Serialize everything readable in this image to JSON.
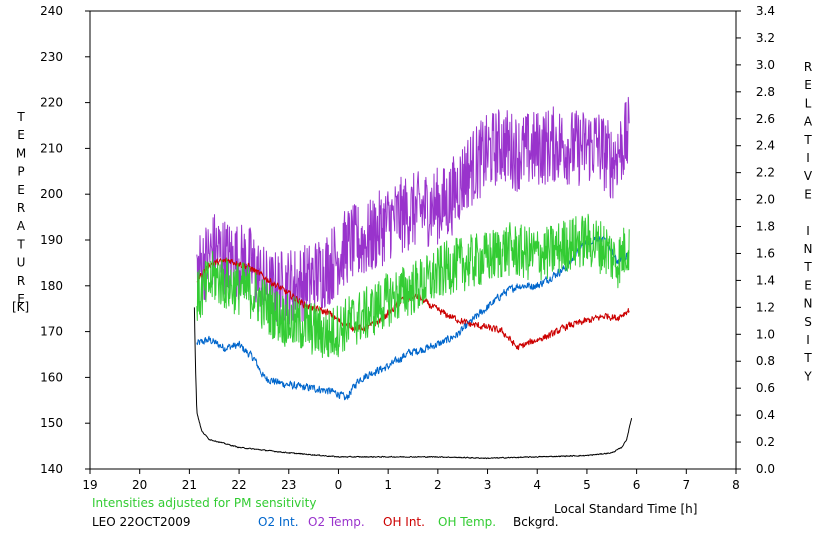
{
  "chart_data": {
    "type": "line",
    "x_axis": {
      "label": "Local Standard Time [h]",
      "range": [
        19,
        32
      ],
      "ticks": [
        19,
        20,
        21,
        22,
        23,
        24,
        25,
        26,
        27,
        28,
        29,
        30,
        31,
        32
      ],
      "tick_labels": [
        "19",
        "20",
        "21",
        "22",
        "23",
        "0",
        "1",
        "2",
        "3",
        "4",
        "5",
        "6",
        "7",
        "8"
      ]
    },
    "y_left": {
      "label": "TEMPERATURE",
      "unit": "[K]",
      "range": [
        140,
        240
      ],
      "ticks": [
        140,
        150,
        160,
        170,
        180,
        190,
        200,
        210,
        220,
        230,
        240
      ],
      "tick_labels": [
        "140",
        "150",
        "160",
        "170",
        "180",
        "190",
        "200",
        "210",
        "220",
        "230",
        "240"
      ]
    },
    "y_right": {
      "label": "RELATIVE INTENSITY",
      "range": [
        0.0,
        3.4
      ],
      "ticks": [
        0.0,
        0.2,
        0.4,
        0.6,
        0.8,
        1.0,
        1.2,
        1.4,
        1.6,
        1.8,
        2.0,
        2.2,
        2.4,
        2.6,
        2.8,
        3.0,
        3.2,
        3.4
      ],
      "tick_labels": [
        "0.0",
        "0.2",
        "0.4",
        "0.6",
        "0.8",
        "1.0",
        "1.2",
        "1.4",
        "1.6",
        "1.8",
        "2.0",
        "2.2",
        "2.4",
        "2.6",
        "2.8",
        "3.0",
        "3.2",
        "3.4"
      ]
    },
    "grid": false,
    "annotation": "Intensities adjusted for PM sensitivity",
    "station_date": "LEO 22OCT2009",
    "series": [
      {
        "name": "O2 Int.",
        "axis": "right",
        "color": "#0066cc",
        "noise": 0.04,
        "points": [
          [
            21.15,
            0.93
          ],
          [
            21.4,
            0.96
          ],
          [
            21.7,
            0.9
          ],
          [
            22.0,
            0.92
          ],
          [
            22.3,
            0.82
          ],
          [
            22.5,
            0.68
          ],
          [
            22.8,
            0.64
          ],
          [
            23.2,
            0.61
          ],
          [
            23.5,
            0.6
          ],
          [
            23.8,
            0.58
          ],
          [
            24.0,
            0.56
          ],
          [
            24.15,
            0.52
          ],
          [
            24.4,
            0.66
          ],
          [
            24.7,
            0.72
          ],
          [
            25.0,
            0.76
          ],
          [
            25.4,
            0.86
          ],
          [
            25.8,
            0.9
          ],
          [
            26.1,
            0.94
          ],
          [
            26.4,
            1.0
          ],
          [
            26.8,
            1.14
          ],
          [
            27.0,
            1.2
          ],
          [
            27.3,
            1.3
          ],
          [
            27.6,
            1.36
          ],
          [
            28.0,
            1.36
          ],
          [
            28.3,
            1.43
          ],
          [
            28.6,
            1.5
          ],
          [
            28.9,
            1.66
          ],
          [
            29.2,
            1.72
          ],
          [
            29.4,
            1.68
          ],
          [
            29.6,
            1.54
          ],
          [
            29.85,
            1.6
          ]
        ]
      },
      {
        "name": "O2 Temp.",
        "axis": "left",
        "color": "#9933cc",
        "noise": 8.5,
        "points": [
          [
            21.15,
            183
          ],
          [
            21.5,
            188
          ],
          [
            21.8,
            186
          ],
          [
            22.2,
            185
          ],
          [
            22.6,
            179
          ],
          [
            23.0,
            180
          ],
          [
            23.4,
            181
          ],
          [
            23.8,
            184
          ],
          [
            24.2,
            189
          ],
          [
            24.6,
            190
          ],
          [
            25.0,
            194
          ],
          [
            25.4,
            196
          ],
          [
            25.8,
            197
          ],
          [
            26.2,
            198
          ],
          [
            26.6,
            205
          ],
          [
            27.0,
            209
          ],
          [
            27.3,
            211
          ],
          [
            27.6,
            209
          ],
          [
            28.0,
            210
          ],
          [
            28.4,
            211
          ],
          [
            28.8,
            210
          ],
          [
            29.2,
            211
          ],
          [
            29.5,
            207
          ],
          [
            29.85,
            213
          ]
        ]
      },
      {
        "name": "OH Int.",
        "axis": "right",
        "color": "#cc0000",
        "noise": 0.035,
        "points": [
          [
            21.15,
            1.4
          ],
          [
            21.4,
            1.52
          ],
          [
            21.8,
            1.55
          ],
          [
            22.2,
            1.5
          ],
          [
            22.6,
            1.4
          ],
          [
            23.0,
            1.3
          ],
          [
            23.4,
            1.2
          ],
          [
            23.8,
            1.16
          ],
          [
            24.0,
            1.1
          ],
          [
            24.3,
            1.05
          ],
          [
            24.6,
            1.05
          ],
          [
            24.9,
            1.12
          ],
          [
            25.3,
            1.26
          ],
          [
            25.6,
            1.28
          ],
          [
            25.9,
            1.2
          ],
          [
            26.2,
            1.14
          ],
          [
            26.6,
            1.08
          ],
          [
            27.0,
            1.05
          ],
          [
            27.3,
            1.02
          ],
          [
            27.6,
            0.9
          ],
          [
            28.0,
            0.96
          ],
          [
            28.3,
            1.0
          ],
          [
            28.6,
            1.06
          ],
          [
            29.0,
            1.1
          ],
          [
            29.4,
            1.14
          ],
          [
            29.6,
            1.12
          ],
          [
            29.85,
            1.18
          ]
        ]
      },
      {
        "name": "OH Temp.",
        "axis": "left",
        "color": "#33cc33",
        "noise": 6,
        "points": [
          [
            21.15,
            177
          ],
          [
            21.5,
            182
          ],
          [
            21.8,
            180
          ],
          [
            22.2,
            179
          ],
          [
            22.6,
            175
          ],
          [
            23.0,
            172
          ],
          [
            23.4,
            171
          ],
          [
            23.8,
            169
          ],
          [
            24.2,
            172
          ],
          [
            24.6,
            174
          ],
          [
            25.0,
            177
          ],
          [
            25.4,
            179
          ],
          [
            25.8,
            181
          ],
          [
            26.2,
            184
          ],
          [
            26.6,
            185
          ],
          [
            27.0,
            186
          ],
          [
            27.4,
            188
          ],
          [
            27.8,
            187
          ],
          [
            28.2,
            187
          ],
          [
            28.6,
            189
          ],
          [
            29.0,
            190
          ],
          [
            29.4,
            188
          ],
          [
            29.6,
            185
          ],
          [
            29.85,
            189
          ]
        ]
      },
      {
        "name": "Bckgrd.",
        "axis": "right",
        "color": "#000000",
        "noise": 0.005,
        "points": [
          [
            21.1,
            1.2
          ],
          [
            21.12,
            0.8
          ],
          [
            21.15,
            0.42
          ],
          [
            21.25,
            0.28
          ],
          [
            21.4,
            0.22
          ],
          [
            21.6,
            0.2
          ],
          [
            22.0,
            0.16
          ],
          [
            22.5,
            0.14
          ],
          [
            23.0,
            0.12
          ],
          [
            24.0,
            0.09
          ],
          [
            25.0,
            0.09
          ],
          [
            26.0,
            0.09
          ],
          [
            27.0,
            0.08
          ],
          [
            28.0,
            0.09
          ],
          [
            29.0,
            0.1
          ],
          [
            29.5,
            0.12
          ],
          [
            29.7,
            0.16
          ],
          [
            29.8,
            0.22
          ],
          [
            29.9,
            0.38
          ]
        ]
      }
    ]
  }
}
